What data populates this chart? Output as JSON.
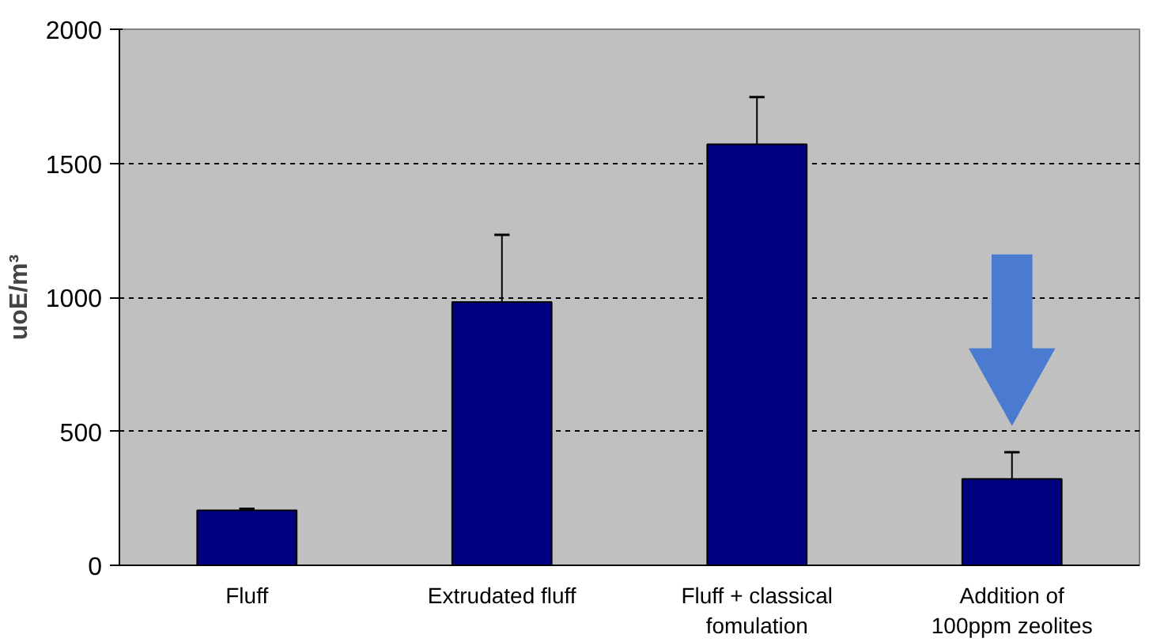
{
  "chart_data": {
    "type": "bar",
    "ylabel": "uoE/m³",
    "categories": [
      "Fluff",
      "Extrudated fluff",
      "Fluff + classical\nfomulation",
      "Addition of\n100ppm zeolites"
    ],
    "values": [
      205,
      982,
      1571,
      322
    ],
    "errors": [
      [
        205,
        211
      ],
      [
        982,
        1233
      ],
      [
        1571,
        1747
      ],
      [
        322,
        422
      ]
    ],
    "color": "#000080",
    "ylim": [
      0,
      2000
    ],
    "yticks": [
      0,
      500,
      1000,
      1500,
      2000
    ],
    "grid": "y"
  }
}
